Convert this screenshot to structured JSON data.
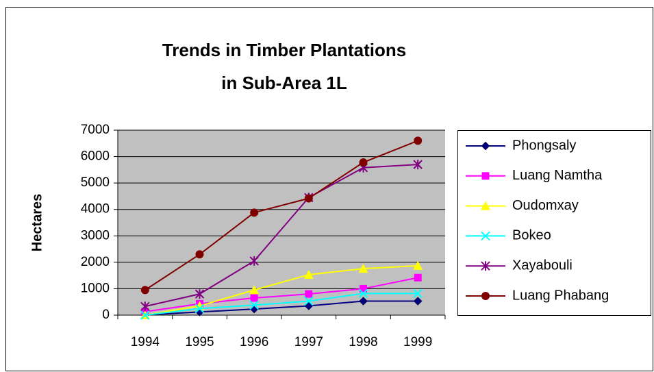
{
  "chart_data": {
    "type": "line",
    "title": [
      "Trends in Timber Plantations",
      "in Sub-Area 1L"
    ],
    "y_label": "Hectares",
    "categories": [
      "1994",
      "1995",
      "1996",
      "1997",
      "1998",
      "1999"
    ],
    "series": [
      {
        "name": "Phongsaly",
        "color": "#000080",
        "marker": "diamond",
        "values": [
          10,
          120,
          230,
          350,
          530,
          530
        ]
      },
      {
        "name": "Luang Namtha",
        "color": "#ff00ff",
        "marker": "square",
        "values": [
          130,
          430,
          650,
          800,
          1000,
          1420
        ]
      },
      {
        "name": "Oudomxay",
        "color": "#ffff00",
        "marker": "triangle",
        "values": [
          0,
          350,
          950,
          1530,
          1760,
          1870
        ]
      },
      {
        "name": "Bokeo",
        "color": "#00ffff",
        "marker": "x",
        "values": [
          0,
          250,
          380,
          530,
          820,
          820
        ]
      },
      {
        "name": "Xayabouli",
        "color": "#800080",
        "marker": "star",
        "values": [
          330,
          800,
          2050,
          4450,
          5580,
          5700
        ]
      },
      {
        "name": "Luang Phabang",
        "color": "#800000",
        "marker": "circle",
        "values": [
          950,
          2300,
          3880,
          4420,
          5780,
          6600
        ]
      }
    ],
    "ylim": [
      0,
      7000
    ],
    "yticks": [
      0,
      1000,
      2000,
      3000,
      4000,
      5000,
      6000,
      7000
    ],
    "grid": true,
    "plot_background": "#c0c0c0",
    "legend": "right"
  }
}
